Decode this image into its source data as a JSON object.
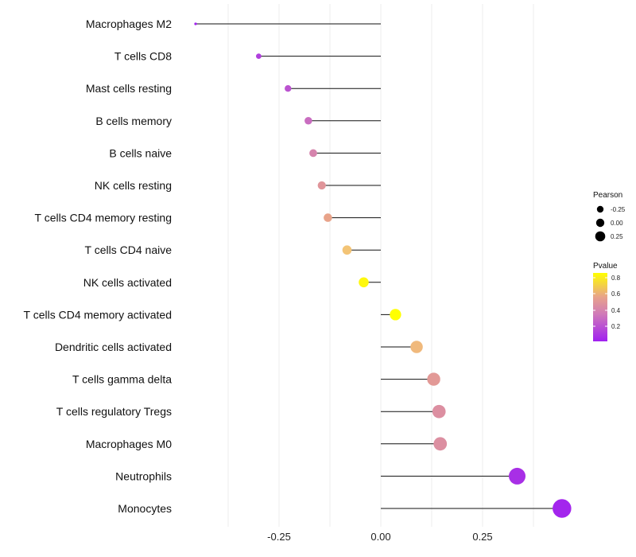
{
  "chart_data": {
    "type": "lollipop",
    "title": "",
    "xlabel": "",
    "ylabel": "",
    "xlim": [
      -0.5,
      0.5
    ],
    "xticks": [
      -0.25,
      0.0,
      0.25
    ],
    "xtick_labels": [
      "-0.25",
      "0.00",
      "0.25"
    ],
    "grid": true,
    "categories": [
      "Macrophages M2",
      "T cells CD8",
      "Mast cells resting",
      "B cells memory",
      "B cells naive",
      "NK cells resting",
      "T cells CD4 memory resting",
      "T cells CD4 naive",
      "NK cells activated",
      "T cells CD4 memory activated",
      "Dendritic cells activated",
      "T cells gamma delta",
      "T cells regulatory  Tregs",
      "Macrophages M0",
      "Neutrophils",
      "Monocytes"
    ],
    "pearson": [
      -0.455,
      -0.3,
      -0.228,
      -0.178,
      -0.166,
      -0.145,
      -0.13,
      -0.083,
      -0.042,
      0.036,
      0.088,
      0.13,
      0.143,
      0.146,
      0.335,
      0.445
    ],
    "pvalue": [
      0.01,
      0.12,
      0.2,
      0.3,
      0.4,
      0.48,
      0.55,
      0.7,
      0.86,
      0.88,
      0.65,
      0.5,
      0.45,
      0.45,
      0.06,
      0.02
    ],
    "legend": {
      "size_title": "Pearson",
      "size_labels": [
        "-0.25",
        "0.00",
        "0.25"
      ],
      "color_title": "Pvalue",
      "color_labels": [
        "0.8",
        "0.6",
        "0.4",
        "0.2"
      ],
      "placement": "right"
    },
    "colors": {
      "low": "#a020f0",
      "mid": "#d98c9a",
      "high": "#ffff00",
      "line": "#111111",
      "grid": "#eeeeee"
    }
  }
}
